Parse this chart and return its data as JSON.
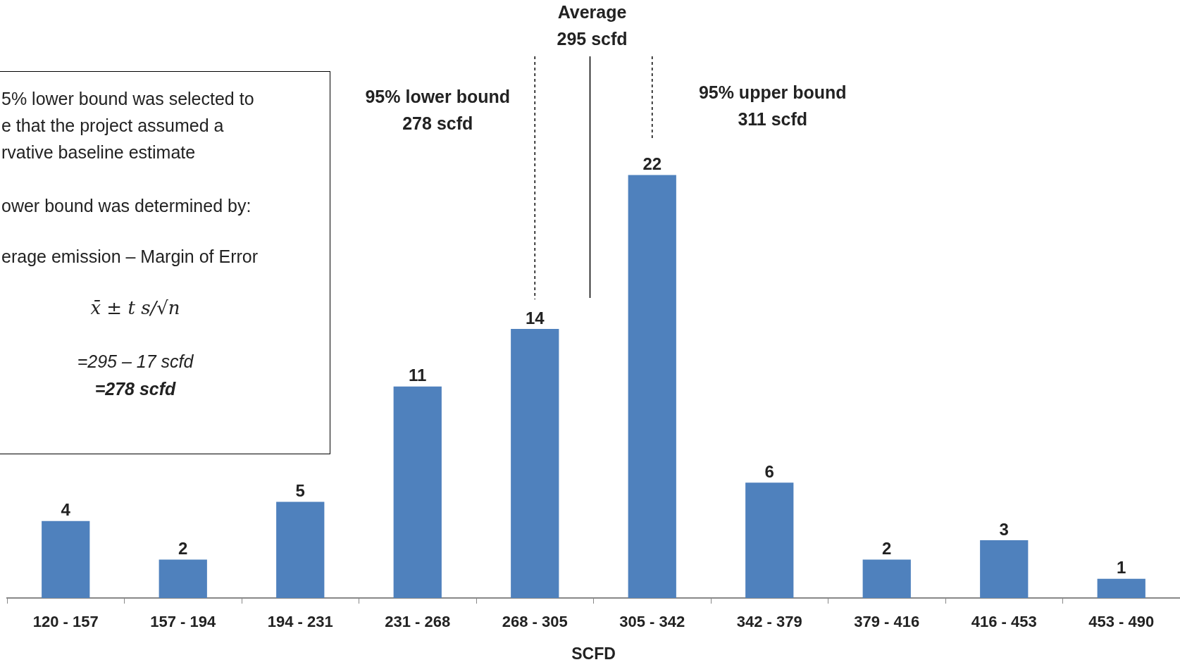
{
  "chart_data": {
    "type": "bar",
    "xlabel": "SCFD",
    "categories": [
      "120 - 157",
      "157 - 194",
      "194 - 231",
      "231 - 268",
      "268 - 305",
      "305 - 342",
      "342 - 379",
      "379 - 416",
      "416 - 453",
      "453 - 490"
    ],
    "values": [
      4,
      2,
      5,
      11,
      14,
      22,
      6,
      2,
      3,
      1
    ],
    "color": "#4f81bd",
    "data_labels": true,
    "annotations": [
      "95% lower bound\n278 scfd",
      "Average\n295 scfd",
      "95% upper bound\n311 scfd",
      "5% lower bound was selected to\ne that the project assumed a\nrvative baseline estimate",
      "ower bound was determined by:",
      "erage emission – Margin of Error",
      "x̄ ± t s/√n",
      "=295 – 17 scfd",
      "=278 scfd"
    ]
  }
}
